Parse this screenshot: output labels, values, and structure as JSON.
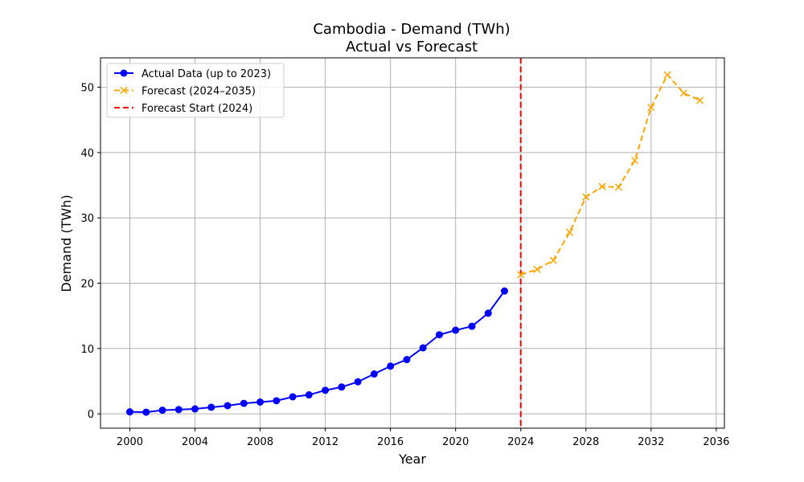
{
  "chart_data": {
    "type": "line",
    "title": "Cambodia - Demand (TWh)",
    "subtitle": "Actual vs Forecast",
    "xlabel": "Year",
    "ylabel": "Demand (TWh)",
    "xlim": [
      1998.2,
      2036.5
    ],
    "ylim": [
      -2.2,
      54.5
    ],
    "xticks": [
      2000,
      2004,
      2008,
      2012,
      2016,
      2020,
      2024,
      2028,
      2032,
      2036
    ],
    "yticks": [
      0,
      10,
      20,
      30,
      40,
      50
    ],
    "grid": true,
    "legend_position": "top-left",
    "series": [
      {
        "name": "Actual Data (up to 2023)",
        "color": "#0000ff",
        "style": "solid",
        "marker": "circle",
        "x": [
          2000,
          2001,
          2002,
          2003,
          2004,
          2005,
          2006,
          2007,
          2008,
          2009,
          2010,
          2011,
          2012,
          2013,
          2014,
          2015,
          2016,
          2017,
          2018,
          2019,
          2020,
          2021,
          2022,
          2023
        ],
        "y": [
          0.3,
          0.25,
          0.55,
          0.65,
          0.75,
          1.0,
          1.25,
          1.6,
          1.8,
          2.0,
          2.6,
          2.9,
          3.6,
          4.1,
          4.9,
          6.1,
          7.3,
          8.3,
          10.1,
          12.1,
          12.8,
          13.4,
          15.4,
          18.8
        ]
      },
      {
        "name": "Forecast (2024–2035)",
        "color": "#ffa500",
        "style": "dashed",
        "marker": "x",
        "x": [
          2024,
          2025,
          2026,
          2027,
          2028,
          2029,
          2030,
          2031,
          2032,
          2033,
          2034,
          2035
        ],
        "y": [
          21.3,
          22.1,
          23.5,
          27.8,
          33.2,
          34.8,
          34.7,
          38.8,
          46.9,
          51.9,
          49.1,
          48.0
        ]
      }
    ],
    "reference_lines": [
      {
        "name": "Forecast Start (2024)",
        "orientation": "vertical",
        "x": 2024,
        "color": "#ff0000",
        "style": "dashed"
      }
    ]
  }
}
